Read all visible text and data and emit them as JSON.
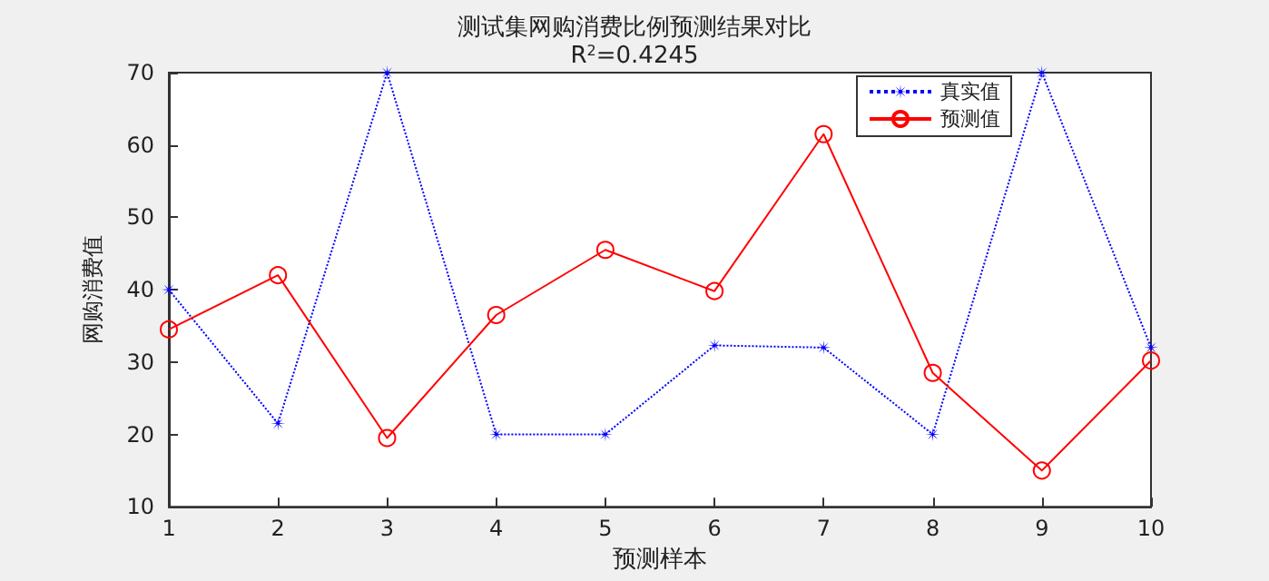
{
  "chart_data": {
    "type": "line",
    "title": "测试集网购消费比例预测结果对比",
    "subtitle": "R$^{2}$=0.4245",
    "xlabel": "预测样本",
    "ylabel": "网购消费值",
    "x": [
      1,
      2,
      3,
      4,
      5,
      6,
      7,
      8,
      9,
      10
    ],
    "series": [
      {
        "name": "真实值",
        "color": "#0000ff",
        "marker": "star",
        "line_style": "dotted",
        "values": [
          40,
          21.5,
          70,
          20,
          20,
          32.3,
          32,
          20,
          70,
          32
        ]
      },
      {
        "name": "预测值",
        "color": "#ff0000",
        "marker": "circle",
        "line_style": "solid",
        "values": [
          34.5,
          42,
          19.5,
          36.5,
          45.5,
          39.8,
          61.5,
          28.5,
          15,
          30.2
        ]
      }
    ],
    "xlim": [
      1,
      10
    ],
    "xticks": [
      1,
      2,
      3,
      4,
      5,
      6,
      7,
      8,
      9,
      10
    ],
    "ylim": [
      10,
      70
    ],
    "yticks": [
      10,
      20,
      30,
      40,
      50,
      60,
      70
    ],
    "grid": false,
    "legend": "top right"
  }
}
